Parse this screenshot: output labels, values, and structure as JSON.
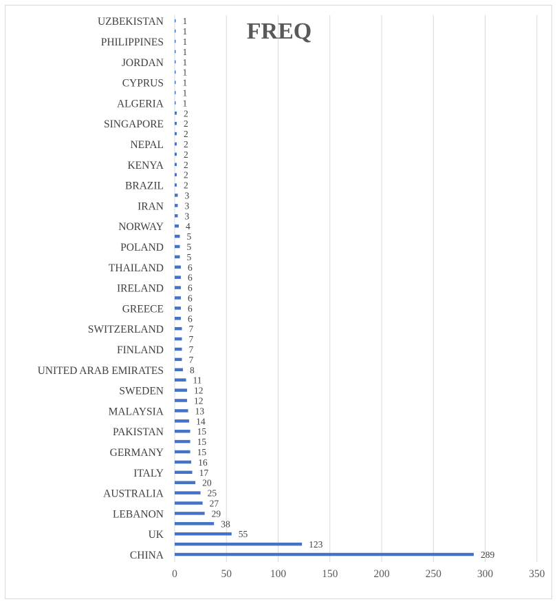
{
  "chart_data": {
    "type": "bar",
    "orientation": "horizontal",
    "title": "FREQ",
    "xlim": [
      0,
      350
    ],
    "xticks": [
      0,
      50,
      100,
      150,
      200,
      250,
      300,
      350
    ],
    "grid": "vertical",
    "colors": {
      "bar": "#4472c4",
      "grid": "#d9d9d9",
      "text": "#404040"
    },
    "categories": [
      "CHINA",
      "",
      "UK",
      "",
      "LEBANON",
      "",
      "AUSTRALIA",
      "",
      "ITALY",
      "",
      "GERMANY",
      "",
      "PAKISTAN",
      "",
      "MALAYSIA",
      "",
      "SWEDEN",
      "",
      "UNITED ARAB EMIRATES",
      "",
      "FINLAND",
      "",
      "SWITZERLAND",
      "",
      "GREECE",
      "",
      "IRELAND",
      "",
      "THAILAND",
      "",
      "POLAND",
      "",
      "NORWAY",
      "",
      "IRAN",
      "",
      "BRAZIL",
      "",
      "KENYA",
      "",
      "NEPAL",
      "",
      "SINGAPORE",
      "",
      "ALGERIA",
      "",
      "CYPRUS",
      "",
      "JORDAN",
      "",
      "PHILIPPINES",
      "",
      "UZBEKISTAN"
    ],
    "values": [
      289,
      123,
      55,
      38,
      29,
      27,
      25,
      20,
      17,
      16,
      15,
      15,
      15,
      14,
      13,
      12,
      12,
      11,
      8,
      7,
      7,
      7,
      7,
      6,
      6,
      6,
      6,
      6,
      6,
      5,
      5,
      5,
      4,
      3,
      3,
      3,
      2,
      2,
      2,
      2,
      2,
      2,
      2,
      2,
      1,
      1,
      1,
      1,
      1,
      1,
      1,
      1,
      1
    ]
  }
}
